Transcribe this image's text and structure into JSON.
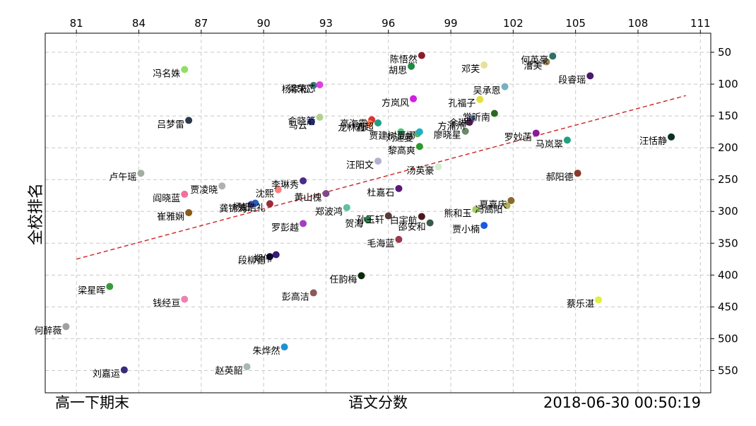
{
  "chart_data": {
    "type": "scatter",
    "title": "",
    "xlabel": "语文分数",
    "ylabel": "全校排名",
    "footer_left": "高一下期末",
    "footer_right": "2018-06-30  00:50:19",
    "xlim": [
      79.5,
      111.5
    ],
    "ylim": [
      585,
      20
    ],
    "y_inverted": true,
    "x_axis_position": "top",
    "y_axis_position": "right",
    "grid": true,
    "xticks": [
      81,
      84,
      87,
      90,
      93,
      96,
      99,
      102,
      105,
      108,
      111
    ],
    "yticks": [
      50,
      100,
      150,
      200,
      250,
      300,
      350,
      400,
      450,
      500,
      550
    ],
    "trendline": {
      "x": [
        81,
        110.3
      ],
      "y": [
        375,
        118
      ],
      "color": "#cc2222",
      "style": "dashed"
    },
    "points": [
      {
        "name": "陈悟然",
        "x": 97.6,
        "y": 55,
        "color": "#8b1a2b"
      },
      {
        "name": "胡思",
        "x": 97.1,
        "y": 72,
        "color": "#1f8a45"
      },
      {
        "name": "邓芙",
        "x": 100.6,
        "y": 70,
        "color": "#e8e09a"
      },
      {
        "name": "何英豪",
        "x": 103.9,
        "y": 56,
        "color": "#2f6f6a"
      },
      {
        "name": "漕美",
        "x": 103.6,
        "y": 65,
        "color": "#9a8a5a"
      },
      {
        "name": "段睿瑶",
        "x": 105.7,
        "y": 87,
        "color": "#4a1a6b"
      },
      {
        "name": "冯名姝",
        "x": 86.2,
        "y": 77,
        "color": "#8fe060"
      },
      {
        "name": "杨家松",
        "x": 92.4,
        "y": 102,
        "color": "#3a7a7a"
      },
      {
        "name": "梁荣芯",
        "x": 92.7,
        "y": 101,
        "color": "#e040e0"
      },
      {
        "name": "吴承恩",
        "x": 101.6,
        "y": 104,
        "color": "#78b0c0"
      },
      {
        "name": "方岚风",
        "x": 97.2,
        "y": 123,
        "color": "#d020e0"
      },
      {
        "name": "孔福子",
        "x": 100.4,
        "y": 124,
        "color": "#e0e040"
      },
      {
        "name": "常昕南",
        "x": 101.1,
        "y": 146,
        "color": "#2a6a20"
      },
      {
        "name": "余琳",
        "x": 100.0,
        "y": 155,
        "color": "#5a6aa0"
      },
      {
        "name": "方浦州",
        "x": 99.9,
        "y": 160,
        "color": "#4a1a4a"
      },
      {
        "name": "俞晓箭",
        "x": 92.7,
        "y": 152,
        "color": "#b0d090"
      },
      {
        "name": "马云",
        "x": 92.3,
        "y": 159,
        "color": "#2a3a9a"
      },
      {
        "name": "吕梦雷",
        "x": 86.4,
        "y": 157,
        "color": "#2a3a4a"
      },
      {
        "name": "高海霞",
        "x": 95.2,
        "y": 156,
        "color": "#e03030"
      },
      {
        "name": "龙林鑫",
        "x": 95.1,
        "y": 162,
        "color": "#ff7f50"
      },
      {
        "name": "刘超",
        "x": 95.5,
        "y": 161,
        "color": "#20a080"
      },
      {
        "name": "廖晓星",
        "x": 99.7,
        "y": 174,
        "color": "#6a8a6a"
      },
      {
        "name": "罗妙菡",
        "x": 103.1,
        "y": 177,
        "color": "#8a1a9a"
      },
      {
        "name": "汪恬静",
        "x": 109.6,
        "y": 183,
        "color": "#0a3020"
      },
      {
        "name": "马岚翠",
        "x": 104.6,
        "y": 188,
        "color": "#20a080"
      },
      {
        "name": "贾建树",
        "x": 96.6,
        "y": 175,
        "color": "#50c080"
      },
      {
        "name": "刘迎曼",
        "x": 97.4,
        "y": 178,
        "color": "#60b060"
      },
      {
        "name": "夏娜",
        "x": 97.5,
        "y": 175,
        "color": "#20b0c0"
      },
      {
        "name": "黎高爽",
        "x": 97.5,
        "y": 198,
        "color": "#2a9a2a"
      },
      {
        "name": "汪阳文",
        "x": 95.5,
        "y": 221,
        "color": "#b0b0d0"
      },
      {
        "name": "汤英豪",
        "x": 98.4,
        "y": 230,
        "color": "#d0f0d0"
      },
      {
        "name": "郝阳德",
        "x": 105.1,
        "y": 240,
        "color": "#8a3a2a"
      },
      {
        "name": "卢午瑶",
        "x": 84.1,
        "y": 240,
        "color": "#a0b0a0"
      },
      {
        "name": "李琳秀",
        "x": 91.9,
        "y": 252,
        "color": "#4a2a8a"
      },
      {
        "name": "贾凌晓",
        "x": 88.0,
        "y": 260,
        "color": "#b0b0b0"
      },
      {
        "name": "沈熙",
        "x": 90.7,
        "y": 266,
        "color": "#ff7f7f"
      },
      {
        "name": "杜嘉石",
        "x": 96.5,
        "y": 264,
        "color": "#5a1a7a"
      },
      {
        "name": "黄山槐",
        "x": 93.0,
        "y": 272,
        "color": "#7a4a8a"
      },
      {
        "name": "阎晓蓝",
        "x": 86.2,
        "y": 273,
        "color": "#f070a0"
      },
      {
        "name": "夏嘉庆",
        "x": 101.9,
        "y": 283,
        "color": "#8a6a2a"
      },
      {
        "name": "冯高阳",
        "x": 101.7,
        "y": 291,
        "color": "#b0b060"
      },
      {
        "name": "熊和玉",
        "x": 100.2,
        "y": 297,
        "color": "#a0d060"
      },
      {
        "name": "杨钰",
        "x": 89.6,
        "y": 287,
        "color": "#2060c0"
      },
      {
        "name": "龚锦涛",
        "x": 89.4,
        "y": 289,
        "color": "#4040a0"
      },
      {
        "name": "刘浩礼",
        "x": 90.3,
        "y": 288,
        "color": "#9a2a3a"
      },
      {
        "name": "郑波鸿",
        "x": 94.0,
        "y": 294,
        "color": "#60c0a0"
      },
      {
        "name": "崔雅娴",
        "x": 86.4,
        "y": 302,
        "color": "#8a5a1a"
      },
      {
        "name": "孙玉轩",
        "x": 96.0,
        "y": 307,
        "color": "#5a3a3a"
      },
      {
        "name": "白宇航",
        "x": 97.6,
        "y": 308,
        "color": "#4a1a1a"
      },
      {
        "name": "贺海",
        "x": 95.0,
        "y": 313,
        "color": "#2a7a4a"
      },
      {
        "name": "邵安和",
        "x": 98.0,
        "y": 318,
        "color": "#3a5a4a"
      },
      {
        "name": "贾小楠",
        "x": 100.6,
        "y": 322,
        "color": "#1a5ae0"
      },
      {
        "name": "罗彭越",
        "x": 91.9,
        "y": 319,
        "color": "#a040c0"
      },
      {
        "name": "毛海蓝",
        "x": 96.5,
        "y": 344,
        "color": "#9a3a4a"
      },
      {
        "name": "郑伟",
        "x": 90.6,
        "y": 368,
        "color": "#3a1a7a"
      },
      {
        "name": "段柳德",
        "x": 90.3,
        "y": 371,
        "color": "#0a0a3a"
      },
      {
        "name": "梁星晖",
        "x": 82.6,
        "y": 418,
        "color": "#3a9a3a"
      },
      {
        "name": "任韵梅",
        "x": 94.7,
        "y": 401,
        "color": "#0a2a0a"
      },
      {
        "name": "彭高洁",
        "x": 92.4,
        "y": 428,
        "color": "#8a5a5a"
      },
      {
        "name": "钱经亘",
        "x": 86.2,
        "y": 438,
        "color": "#f080b0"
      },
      {
        "name": "蔡乐湛",
        "x": 106.1,
        "y": 439,
        "color": "#e0f040"
      },
      {
        "name": "何醉薇",
        "x": 80.5,
        "y": 481,
        "color": "#a0a0a0"
      },
      {
        "name": "朱烨然",
        "x": 91.0,
        "y": 513,
        "color": "#2090d0"
      },
      {
        "name": "赵英韶",
        "x": 89.2,
        "y": 544,
        "color": "#a8b8b8"
      },
      {
        "name": "刘嘉运",
        "x": 83.3,
        "y": 549,
        "color": "#3a2a7a"
      }
    ]
  }
}
